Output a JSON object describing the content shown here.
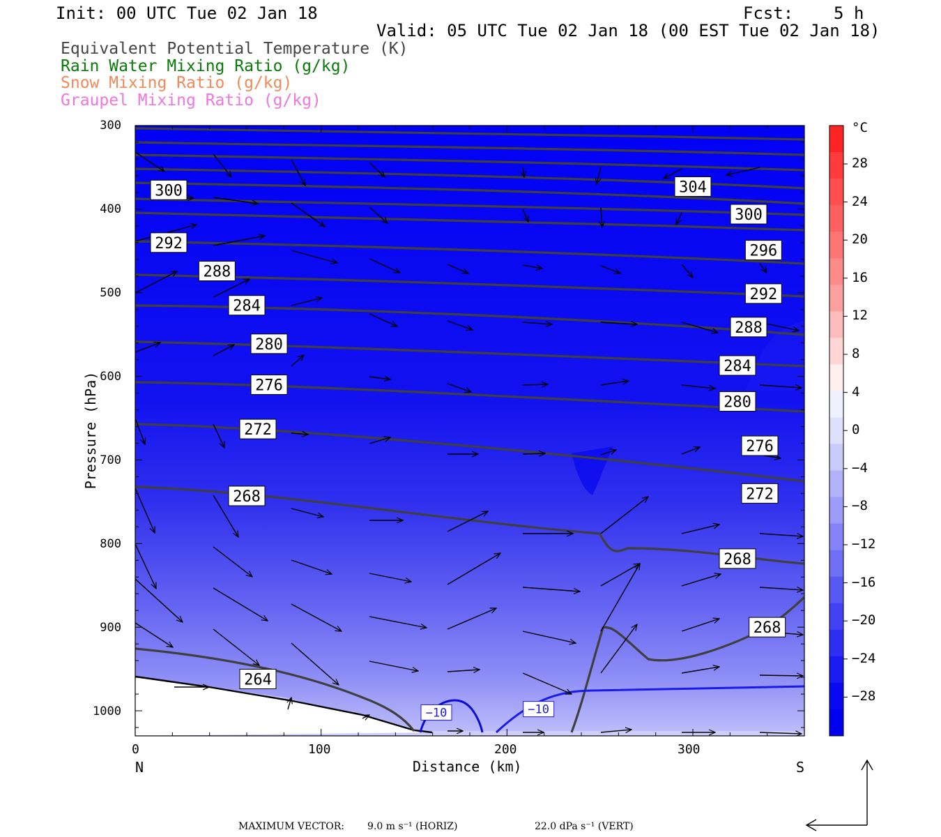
{
  "header": {
    "init": "Init: 00 UTC Tue 02 Jan 18",
    "fcst": "Fcst:    5 h",
    "valid": "Valid: 05 UTC Tue 02 Jan 18 (00 EST Tue 02 Jan 18)"
  },
  "fields": [
    {
      "label": "Equivalent Potential Temperature (K)",
      "color": "#444444"
    },
    {
      "label": "Rain Water Mixing Ratio (g/kg)",
      "color": "#0a7a0a"
    },
    {
      "label": "Snow Mixing Ratio (g/kg)",
      "color": "#f08a5a"
    },
    {
      "label": "Graupel Mixing Ratio (g/kg)",
      "color": "#ee77dd"
    }
  ],
  "axes": {
    "ylabel": "Pressure (hPa)",
    "xlabel": "Distance (km)",
    "y_ticks": [
      "300",
      "400",
      "500",
      "600",
      "700",
      "800",
      "900",
      "1000"
    ],
    "x_ticks": [
      "0",
      "100",
      "200",
      "300"
    ],
    "left_end": "N",
    "right_end": "S"
  },
  "colorbar": {
    "unit": "°C",
    "ticks": [
      "28",
      "24",
      "20",
      "16",
      "12",
      "8",
      "4",
      "0",
      "−4",
      "−8",
      "−12",
      "−16",
      "−20",
      "−24",
      "−28"
    ]
  },
  "footer": {
    "max_vector": "MAXIMUM VECTOR:",
    "horiz": "9.0 m s⁻¹ (HORIZ)",
    "vert": "22.0 dPa s⁻¹ (VERT)"
  },
  "chart_data": {
    "type": "cross-section",
    "x_range_km": [
      0,
      360
    ],
    "y_range_hPa": [
      300,
      1030
    ],
    "y_scale": "linear",
    "theta_e_labels": [
      {
        "text": "300",
        "x": 18,
        "p": 377
      },
      {
        "text": "292",
        "x": 18,
        "p": 440
      },
      {
        "text": "288",
        "x": 44,
        "p": 474
      },
      {
        "text": "284",
        "x": 60,
        "p": 515
      },
      {
        "text": "280",
        "x": 72,
        "p": 561
      },
      {
        "text": "276",
        "x": 72,
        "p": 610
      },
      {
        "text": "272",
        "x": 66,
        "p": 663
      },
      {
        "text": "268",
        "x": 60,
        "p": 743
      },
      {
        "text": "264",
        "x": 66,
        "p": 962
      },
      {
        "text": "304",
        "x": 300,
        "p": 373
      },
      {
        "text": "300",
        "x": 330,
        "p": 406
      },
      {
        "text": "296",
        "x": 338,
        "p": 449
      },
      {
        "text": "292",
        "x": 338,
        "p": 501
      },
      {
        "text": "288",
        "x": 330,
        "p": 541
      },
      {
        "text": "284",
        "x": 324,
        "p": 587
      },
      {
        "text": "280",
        "x": 324,
        "p": 630
      },
      {
        "text": "276",
        "x": 336,
        "p": 683
      },
      {
        "text": "272",
        "x": 336,
        "p": 740
      },
      {
        "text": "268",
        "x": 324,
        "p": 818
      },
      {
        "text": "268",
        "x": 340,
        "p": 900
      }
    ],
    "temperature_contour_labels": [
      {
        "text": "−10",
        "x": 162,
        "p": 1002
      },
      {
        "text": "−10",
        "x": 217,
        "p": 998
      }
    ]
  }
}
